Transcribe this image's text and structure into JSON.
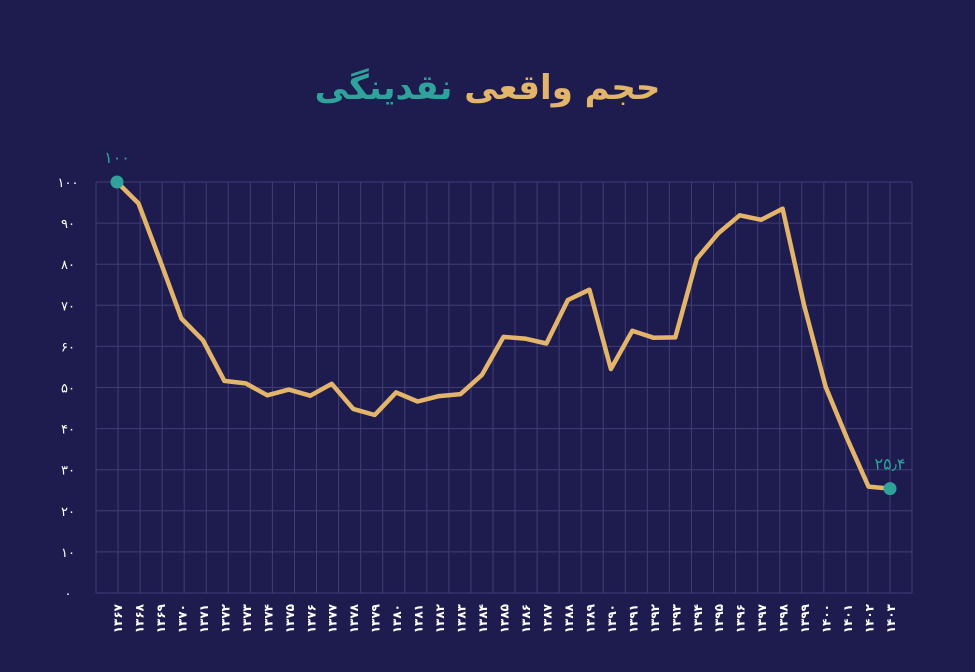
{
  "title": {
    "part1": "حجم واقعی",
    "part2": "نقدینگی"
  },
  "colors": {
    "background": "#1e1c4f",
    "line": "#e3b56b",
    "marker": "#2fa39b",
    "grid": "#3f3d74"
  },
  "chart_data": {
    "type": "line",
    "title": "حجم واقعی نقدینگی",
    "xlabel": "",
    "ylabel": "",
    "ylim": [
      0,
      100
    ],
    "yticks": [
      0,
      10,
      20,
      30,
      40,
      50,
      60,
      70,
      80,
      90,
      100
    ],
    "ytick_labels": [
      "۰",
      "۱۰",
      "۲۰",
      "۳۰",
      "۴۰",
      "۵۰",
      "۶۰",
      "۷۰",
      "۸۰",
      "۹۰",
      "۱۰۰"
    ],
    "grid": true,
    "categories": [
      "۱۳۶۷",
      "۱۳۶۸",
      "۱۳۶۹",
      "۱۳۷۰",
      "۱۳۷۱",
      "۱۳۷۲",
      "۱۳۷۳",
      "۱۳۷۴",
      "۱۳۷۵",
      "۱۳۷۶",
      "۱۳۷۷",
      "۱۳۷۸",
      "۱۳۷۹",
      "۱۳۸۰",
      "۱۳۸۱",
      "۱۳۸۲",
      "۱۳۸۳",
      "۱۳۸۴",
      "۱۳۸۵",
      "۱۳۸۶",
      "۱۳۸۷",
      "۱۳۸۸",
      "۱۳۸۹",
      "۱۳۹۰",
      "۱۳۹۱",
      "۱۳۹۲",
      "۱۳۹۳",
      "۱۳۹۴",
      "۱۳۹۵",
      "۱۳۹۶",
      "۱۳۹۷",
      "۱۳۹۸",
      "۱۳۹۹",
      "۱۴۰۰",
      "۱۴۰۱",
      "۱۴۰۲",
      "۱۴۰۳"
    ],
    "values": [
      100,
      94.8,
      81,
      66.8,
      61.5,
      51.6,
      51,
      48.1,
      49.5,
      48,
      50.9,
      44.8,
      43.3,
      48.8,
      46.6,
      47.9,
      48.4,
      53.1,
      62.3,
      61.9,
      60.7,
      71.3,
      73.8,
      54.5,
      63.8,
      62.1,
      62.2,
      81.3,
      87.5,
      91.9,
      90.8,
      93.5,
      70,
      50.2,
      37.6,
      25.9,
      25.4
    ],
    "annotations": [
      {
        "index": 0,
        "text": "۱۰۰"
      },
      {
        "index": 36,
        "text": "۲۵٫۴"
      }
    ]
  }
}
